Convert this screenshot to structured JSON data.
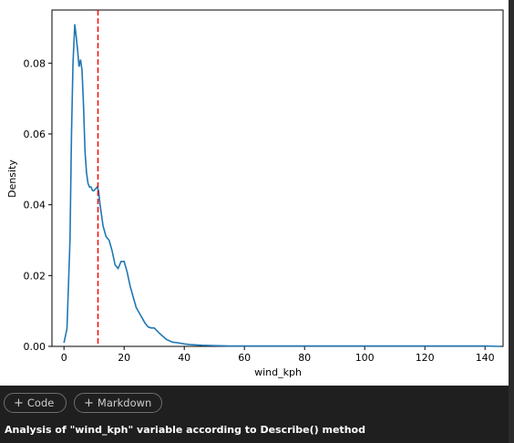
{
  "toolbar": {
    "add_code_label": "Code",
    "add_markdown_label": "Markdown",
    "plus_glyph": "+"
  },
  "markdown_cell": {
    "text": "Analysis of \"wind_kph\" variable according to Describe() method"
  },
  "colors": {
    "line": "#1f77b4",
    "mean_line": "#ff0000"
  },
  "chart_data": {
    "type": "line",
    "xlabel": "wind_kph",
    "ylabel": "Density",
    "xlim": [
      -4,
      146
    ],
    "ylim": [
      0,
      0.095
    ],
    "x_ticks": [
      0,
      20,
      40,
      60,
      80,
      100,
      120,
      140
    ],
    "x_tick_labels": [
      "0",
      "20",
      "40",
      "60",
      "80",
      "100",
      "120",
      "140"
    ],
    "y_ticks": [
      0.0,
      0.02,
      0.04,
      0.06,
      0.08
    ],
    "y_tick_labels": [
      "0.00",
      "0.02",
      "0.04",
      "0.06",
      "0.08"
    ],
    "grid": false,
    "vline": {
      "x": 11.3,
      "style": "dashed"
    },
    "series": [
      {
        "x": [
          0,
          1,
          2,
          2.5,
          3,
          3.6,
          4,
          4.5,
          5,
          5.5,
          6,
          6.5,
          7,
          7.5,
          8,
          8.5,
          9,
          9.5,
          10,
          11,
          11.5,
          12,
          12.5,
          13,
          14,
          15,
          16,
          17,
          18,
          19,
          20,
          21,
          22,
          23,
          24,
          25,
          26,
          27,
          28,
          29,
          30,
          32,
          34,
          36,
          38,
          40,
          42,
          44,
          46,
          50,
          55,
          60,
          70,
          80,
          100,
          120,
          140,
          145
        ],
        "y": [
          0.001,
          0.005,
          0.03,
          0.06,
          0.08,
          0.091,
          0.088,
          0.084,
          0.079,
          0.081,
          0.078,
          0.068,
          0.055,
          0.049,
          0.046,
          0.045,
          0.045,
          0.044,
          0.044,
          0.045,
          0.044,
          0.04,
          0.037,
          0.034,
          0.031,
          0.03,
          0.027,
          0.023,
          0.022,
          0.024,
          0.024,
          0.021,
          0.017,
          0.014,
          0.011,
          0.0095,
          0.008,
          0.0065,
          0.0055,
          0.0052,
          0.0052,
          0.0035,
          0.002,
          0.0012,
          0.001,
          0.0007,
          0.0005,
          0.0004,
          0.0003,
          0.0002,
          0.0001,
          0.0001,
          0.0001,
          0.0001,
          0.0001,
          0.0001,
          0.0001,
          0.0
        ]
      }
    ]
  }
}
